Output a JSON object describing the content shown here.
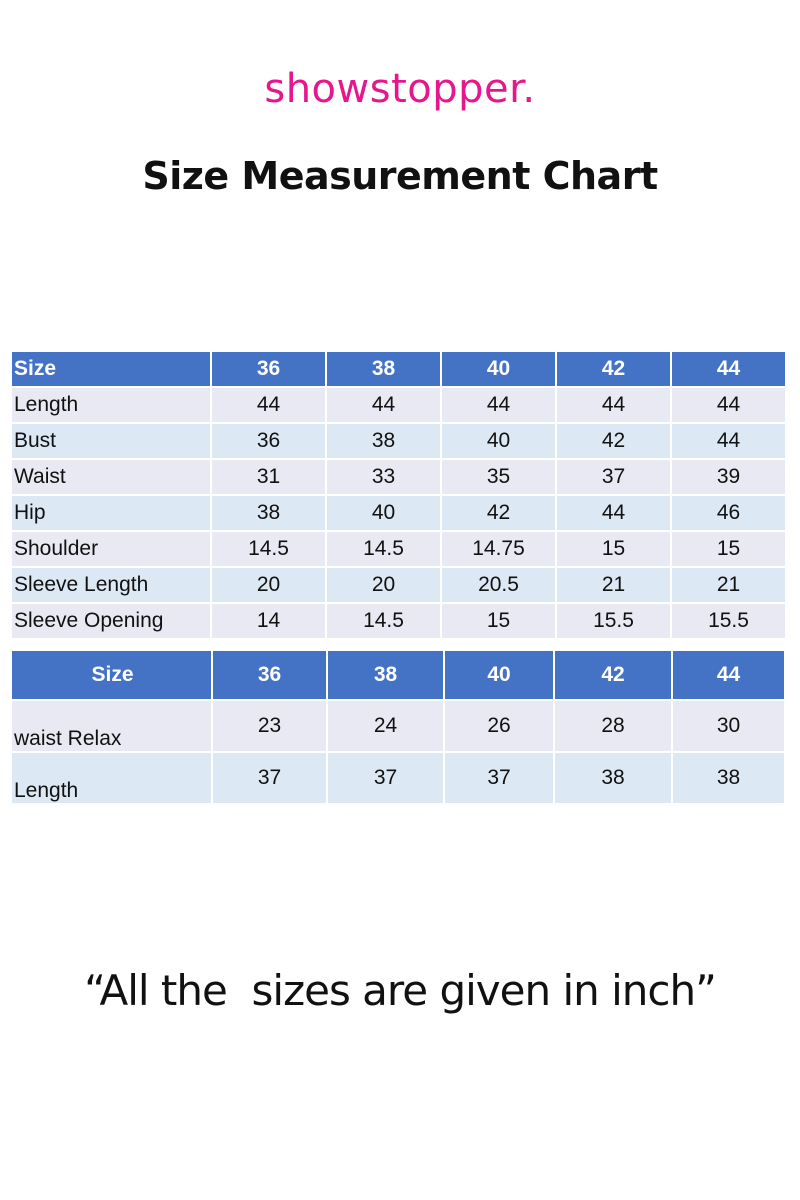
{
  "brand": "showstopper.",
  "title": "Size Measurement Chart",
  "colors": {
    "brand": "#e6168c",
    "header": "#4472c4",
    "row_odd": "#e8e9f3",
    "row_even": "#dde8f5"
  },
  "table1": {
    "headers": [
      "Size",
      "36",
      "38",
      "40",
      "42",
      "44"
    ],
    "rows": [
      [
        "Length",
        "44",
        "44",
        "44",
        "44",
        "44"
      ],
      [
        "Bust",
        "36",
        "38",
        "40",
        "42",
        "44"
      ],
      [
        "Waist",
        "31",
        "33",
        "35",
        "37",
        "39"
      ],
      [
        "Hip",
        "38",
        "40",
        "42",
        "44",
        "46"
      ],
      [
        "Shoulder",
        "14.5",
        "14.5",
        "14.75",
        "15",
        "15"
      ],
      [
        "Sleeve Length",
        "20",
        "20",
        "20.5",
        "21",
        "21"
      ],
      [
        "Sleeve Opening",
        "14",
        "14.5",
        "15",
        "15.5",
        "15.5"
      ]
    ]
  },
  "table2": {
    "headers": [
      "Size",
      "36",
      "38",
      "40",
      "42",
      "44"
    ],
    "rows": [
      [
        "waist Relax",
        "23",
        "24",
        "26",
        "28",
        "30"
      ],
      [
        "Length",
        "37",
        "37",
        "37",
        "38",
        "38"
      ]
    ]
  },
  "note": "“All the  sizes are given in inch”"
}
